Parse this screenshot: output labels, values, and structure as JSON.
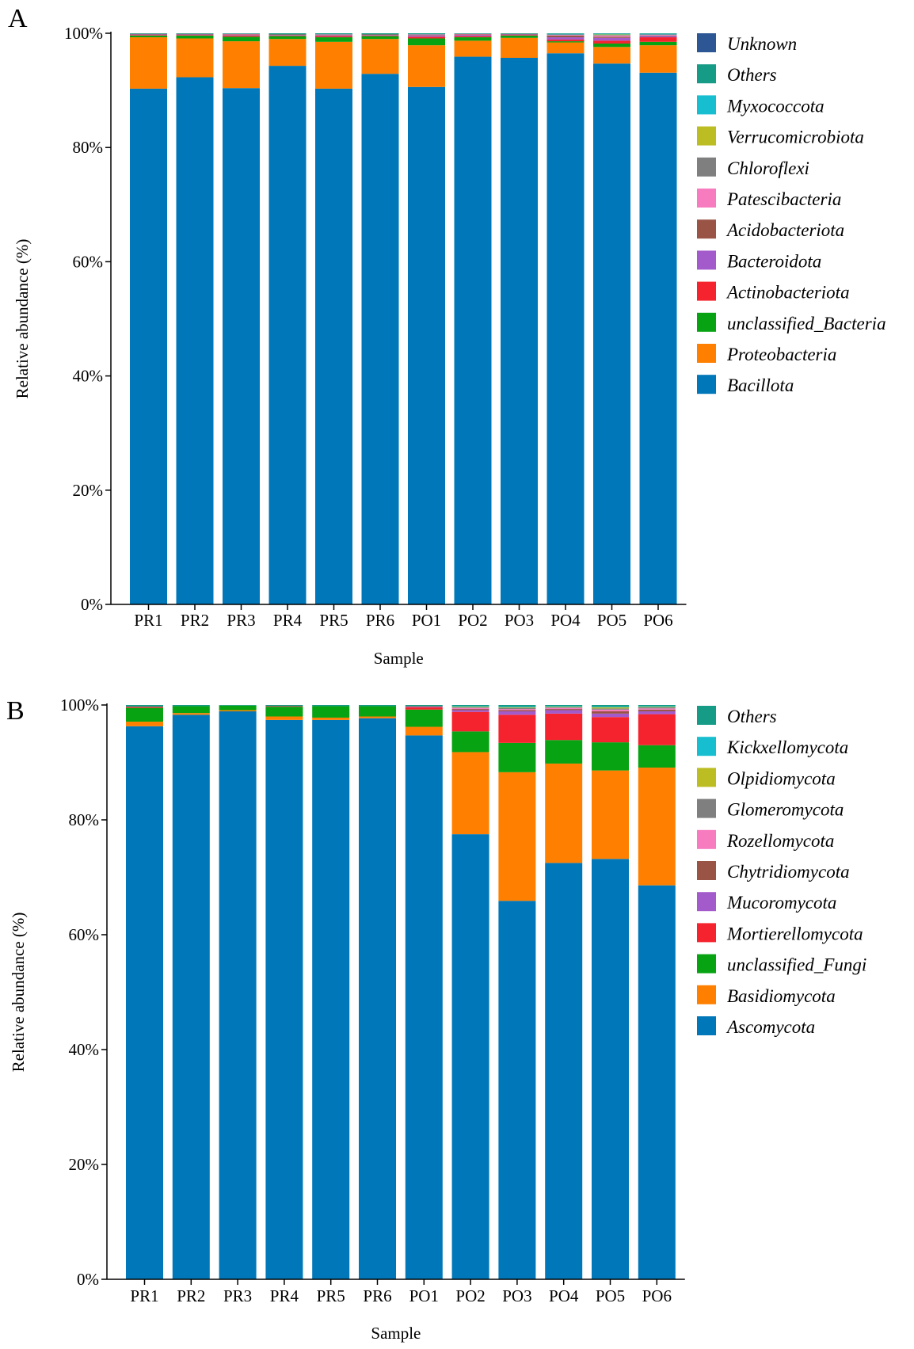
{
  "chart_data": [
    {
      "panel_label": "A",
      "type": "bar",
      "stacked": true,
      "xlabel": "Sample",
      "ylabel": "Relative abundance (%)",
      "ylim": [
        0,
        100
      ],
      "yticks": [
        "0%",
        "20%",
        "40%",
        "60%",
        "80%",
        "100%"
      ],
      "categories": [
        "PR1",
        "PR2",
        "PR3",
        "PR4",
        "PR5",
        "PR6",
        "PO1",
        "PO2",
        "PO3",
        "PO4",
        "PO5",
        "PO6"
      ],
      "series": [
        {
          "name": "Bacillota",
          "color": "#0077b8",
          "values": [
            90.3,
            92.3,
            90.4,
            94.3,
            90.3,
            92.9,
            90.6,
            95.9,
            95.7,
            96.5,
            94.7,
            93.1
          ]
        },
        {
          "name": "Proteobacteria",
          "color": "#ff8000",
          "values": [
            9.0,
            6.8,
            8.2,
            4.7,
            8.2,
            6.1,
            7.3,
            2.8,
            3.5,
            1.9,
            2.9,
            4.8
          ]
        },
        {
          "name": "unclassified_Bacteria",
          "color": "#07a312",
          "values": [
            0.3,
            0.5,
            0.8,
            0.5,
            0.8,
            0.5,
            1.2,
            0.6,
            0.4,
            0.2,
            0.6,
            0.6
          ]
        },
        {
          "name": "Actinobacteriota",
          "color": "#f5232d",
          "values": [
            0.1,
            0.1,
            0.2,
            0.1,
            0.2,
            0.1,
            0.3,
            0.2,
            0.1,
            0.3,
            0.5,
            0.8
          ]
        },
        {
          "name": "Bacteroidota",
          "color": "#a35bcb",
          "values": [
            0.1,
            0.1,
            0.1,
            0.1,
            0.1,
            0.1,
            0.2,
            0.2,
            0.1,
            0.4,
            0.5,
            0.2
          ]
        },
        {
          "name": "Acidobacteriota",
          "color": "#9a5446",
          "values": [
            0.1,
            0.1,
            0.1,
            0.1,
            0.1,
            0.1,
            0.1,
            0.1,
            0.1,
            0.3,
            0.2,
            0.1
          ]
        },
        {
          "name": "Patescibacteria",
          "color": "#f77bbf",
          "values": [
            0.0,
            0.0,
            0.1,
            0.0,
            0.1,
            0.0,
            0.1,
            0.1,
            0.0,
            0.1,
            0.2,
            0.1
          ]
        },
        {
          "name": "Chloroflexi",
          "color": "#7f7f7f",
          "values": [
            0.0,
            0.0,
            0.0,
            0.0,
            0.0,
            0.0,
            0.0,
            0.0,
            0.0,
            0.1,
            0.1,
            0.1
          ]
        },
        {
          "name": "Verrucomicrobiota",
          "color": "#bcbd22",
          "values": [
            0.0,
            0.0,
            0.0,
            0.0,
            0.0,
            0.0,
            0.0,
            0.0,
            0.0,
            0.0,
            0.1,
            0.0
          ]
        },
        {
          "name": "Myxococcota",
          "color": "#17becf",
          "values": [
            0.0,
            0.0,
            0.0,
            0.0,
            0.0,
            0.0,
            0.0,
            0.0,
            0.0,
            0.1,
            0.1,
            0.1
          ]
        },
        {
          "name": "Others",
          "color": "#159b86",
          "values": [
            0.1,
            0.1,
            0.1,
            0.2,
            0.2,
            0.2,
            0.2,
            0.1,
            0.1,
            0.1,
            0.1,
            0.1
          ]
        },
        {
          "name": "Unknown",
          "color": "#2c5794",
          "values": [
            0.0,
            0.0,
            0.0,
            0.0,
            0.0,
            0.0,
            0.0,
            0.0,
            0.0,
            0.0,
            0.0,
            0.0
          ]
        }
      ]
    },
    {
      "panel_label": "B",
      "type": "bar",
      "stacked": true,
      "xlabel": "Sample",
      "ylabel": "Relative abundance (%)",
      "ylim": [
        0,
        100
      ],
      "yticks": [
        "0%",
        "20%",
        "40%",
        "60%",
        "80%",
        "100%"
      ],
      "categories": [
        "PR1",
        "PR2",
        "PR3",
        "PR4",
        "PR5",
        "PR6",
        "PO1",
        "PO2",
        "PO3",
        "PO4",
        "PO5",
        "PO6"
      ],
      "series": [
        {
          "name": "Ascomycota",
          "color": "#0077b8",
          "values": [
            96.3,
            98.3,
            98.9,
            97.4,
            97.4,
            97.7,
            94.7,
            77.5,
            65.9,
            72.5,
            73.2,
            68.6
          ]
        },
        {
          "name": "Basidiomycota",
          "color": "#ff8000",
          "values": [
            0.8,
            0.3,
            0.2,
            0.6,
            0.4,
            0.3,
            1.5,
            14.3,
            22.4,
            17.3,
            15.4,
            20.5
          ]
        },
        {
          "name": "unclassified_Fungi",
          "color": "#07a312",
          "values": [
            2.4,
            1.2,
            0.8,
            1.7,
            2.0,
            1.8,
            3.0,
            3.6,
            5.1,
            4.1,
            4.9,
            3.9
          ]
        },
        {
          "name": "Mortierellomycota",
          "color": "#f5232d",
          "values": [
            0.2,
            0.0,
            0.0,
            0.1,
            0.0,
            0.0,
            0.4,
            3.4,
            4.9,
            4.6,
            4.4,
            5.4
          ]
        },
        {
          "name": "Mucoromycota",
          "color": "#a35bcb",
          "values": [
            0.0,
            0.0,
            0.0,
            0.0,
            0.0,
            0.0,
            0.1,
            0.3,
            0.6,
            0.6,
            0.6,
            0.5
          ]
        },
        {
          "name": "Chytridiomycota",
          "color": "#9a5446",
          "values": [
            0.0,
            0.0,
            0.0,
            0.0,
            0.0,
            0.0,
            0.1,
            0.2,
            0.2,
            0.2,
            0.4,
            0.3
          ]
        },
        {
          "name": "Rozellomycota",
          "color": "#f77bbf",
          "values": [
            0.0,
            0.0,
            0.0,
            0.0,
            0.0,
            0.0,
            0.0,
            0.2,
            0.2,
            0.2,
            0.3,
            0.2
          ]
        },
        {
          "name": "Glomeromycota",
          "color": "#7f7f7f",
          "values": [
            0.0,
            0.0,
            0.0,
            0.0,
            0.0,
            0.0,
            0.0,
            0.1,
            0.2,
            0.1,
            0.2,
            0.2
          ]
        },
        {
          "name": "Olpidiomycota",
          "color": "#bcbd22",
          "values": [
            0.0,
            0.0,
            0.0,
            0.0,
            0.0,
            0.0,
            0.0,
            0.1,
            0.1,
            0.1,
            0.2,
            0.1
          ]
        },
        {
          "name": "Kickxellomycota",
          "color": "#17becf",
          "values": [
            0.0,
            0.0,
            0.0,
            0.0,
            0.0,
            0.0,
            0.0,
            0.1,
            0.1,
            0.1,
            0.1,
            0.1
          ]
        },
        {
          "name": "Others",
          "color": "#159b86",
          "values": [
            0.3,
            0.2,
            0.1,
            0.2,
            0.2,
            0.2,
            0.2,
            0.2,
            0.3,
            0.2,
            0.3,
            0.2
          ]
        }
      ]
    }
  ]
}
